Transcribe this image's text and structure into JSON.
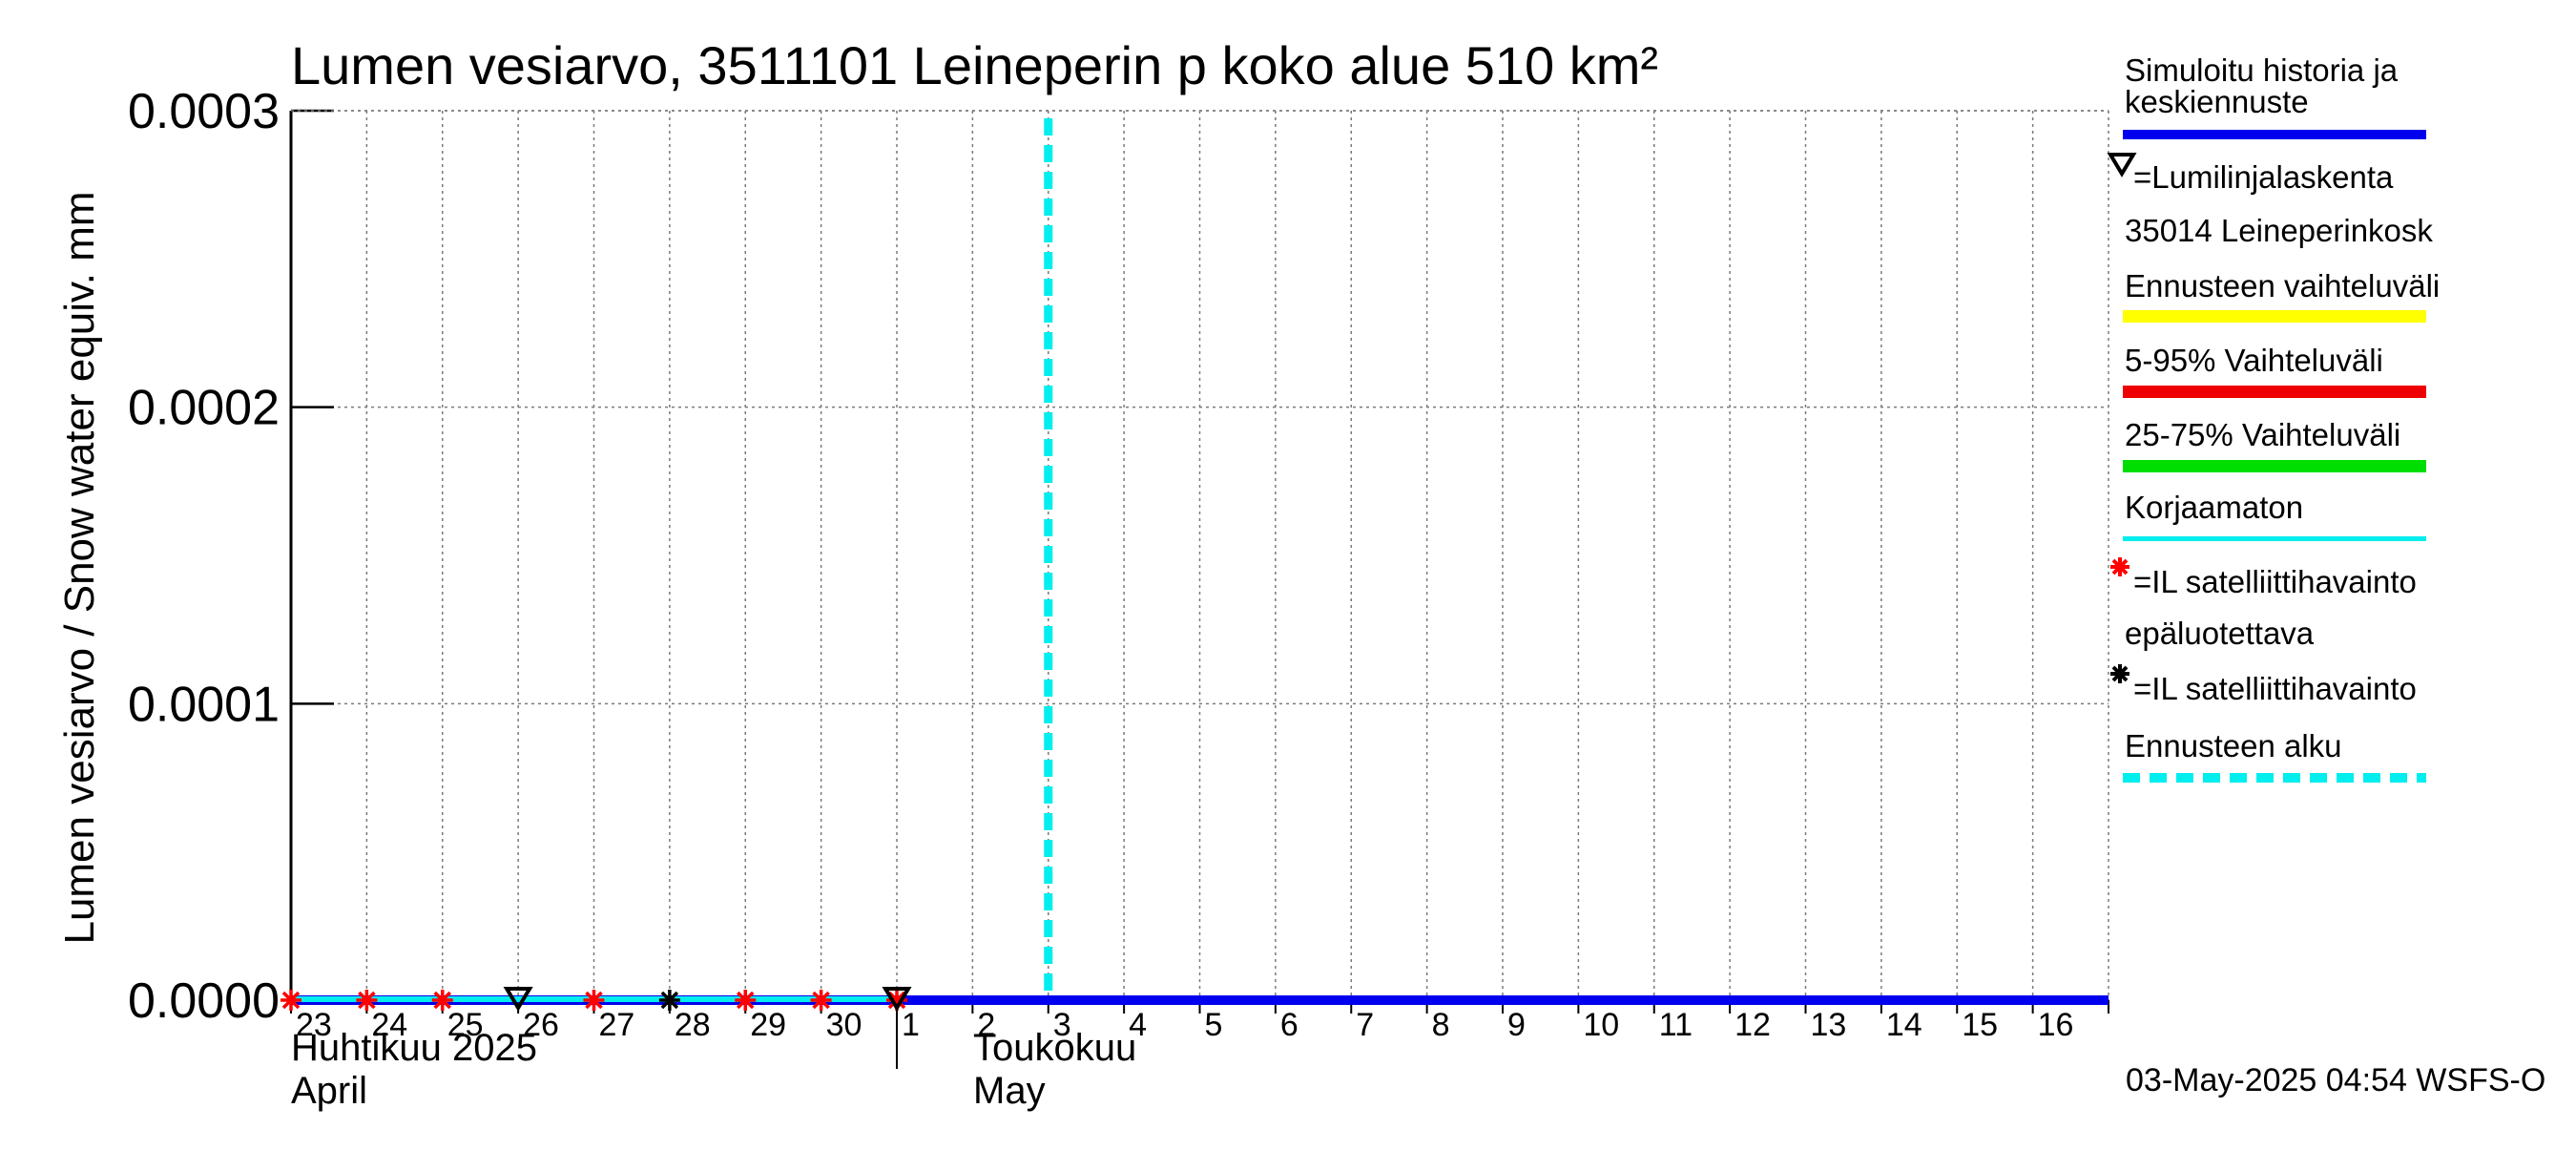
{
  "chart_data": {
    "type": "line",
    "title": "Lumen vesiarvo, 3511101 Leineperin p koko alue 510 km²",
    "ylabel": "Lumen vesiarvo / Snow water equiv.    mm",
    "ylim": [
      0,
      0.0003
    ],
    "yticks": [
      "0.0000",
      "0.0001",
      "0.0002",
      "0.0003"
    ],
    "ytick_values": [
      0,
      0.0001,
      0.0002,
      0.0003
    ],
    "xlim_days": [
      0,
      24
    ],
    "day_labels": [
      "23",
      "24",
      "25",
      "26",
      "27",
      "28",
      "29",
      "30",
      "1",
      "2",
      "3",
      "4",
      "5",
      "6",
      "7",
      "8",
      "9",
      "10",
      "11",
      "12",
      "13",
      "14",
      "15",
      "16"
    ],
    "months": [
      {
        "fi": "Huhtikuu  2025",
        "en": "April",
        "day": 0
      },
      {
        "fi": "Toukokuu",
        "en": "May",
        "day": 8
      }
    ],
    "forecast_start_day": 10.0,
    "series": [
      {
        "name": "Simuloitu historia ja keskiennuste",
        "color": "#0000ee",
        "x": [
          0,
          24
        ],
        "y": [
          0,
          0
        ]
      },
      {
        "name": "Korjaamaton",
        "color": "#00eeee",
        "x": [
          0,
          8
        ],
        "y": [
          0,
          0
        ]
      }
    ],
    "markers": {
      "il_red": {
        "x": [
          0,
          1,
          2,
          4,
          6,
          7,
          8
        ],
        "y": [
          0,
          0,
          0,
          0,
          0,
          0,
          0
        ],
        "color": "#ff0000"
      },
      "il_black": {
        "x": [
          5
        ],
        "y": [
          0
        ],
        "color": "#000000"
      },
      "snowline": {
        "x": [
          3,
          8
        ],
        "y": [
          0,
          0
        ],
        "color": "#000000"
      }
    },
    "legend": {
      "sim_line1": "Simuloitu historia ja",
      "sim_line2": "keskiennuste",
      "lumilinja": "=Lumilinjalaskenta",
      "station": "35014 Leineperinkosk",
      "ennuste_range": "Ennusteen vaihteluväli",
      "p5_95": "5-95% Vaihteluväli",
      "p25_75": "25-75% Vaihteluväli",
      "korjaamaton": "Korjaamaton",
      "il_unreliable_1": "=IL satelliittihavainto",
      "il_unreliable_2": "epäluotettava",
      "il_reliable": "=IL satelliittihavainto",
      "forecast_start": "Ennusteen alku",
      "colors": {
        "sim": "#0000ee",
        "ennuste": "#ffff00",
        "p5_95": "#ee0000",
        "p25_75": "#00dd00",
        "korjaamaton": "#00eeee",
        "forecast_start": "#00eeee"
      }
    },
    "timestamp": "03-May-2025 04:54 WSFS-O"
  }
}
